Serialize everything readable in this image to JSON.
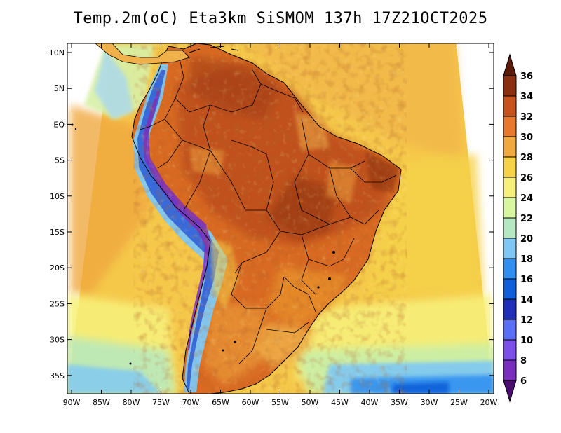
{
  "title": "Temp.2m(oC) Eta3km SiSMOM 137h 17Z21OCT2025",
  "map": {
    "variable": "2 m air temperature",
    "units": "oC",
    "region": "South America",
    "lat_labels": [
      "10N",
      "5N",
      "EQ",
      "5S",
      "10S",
      "15S",
      "20S",
      "25S",
      "30S",
      "35S"
    ],
    "lon_labels": [
      "90W",
      "85W",
      "80W",
      "75W",
      "70W",
      "65W",
      "60W",
      "55W",
      "50W",
      "45W",
      "40W",
      "35W",
      "30W",
      "25W",
      "20W"
    ]
  },
  "colorbar": {
    "labels": [
      "36",
      "34",
      "32",
      "30",
      "28",
      "26",
      "24",
      "22",
      "20",
      "18",
      "16",
      "14",
      "12",
      "10",
      "8",
      "6"
    ],
    "levels": [
      6,
      8,
      10,
      12,
      14,
      16,
      18,
      20,
      22,
      24,
      26,
      28,
      30,
      32,
      34,
      36
    ],
    "colors": [
      "#4a0d6e",
      "#7a2ec0",
      "#7b50e8",
      "#5a6ef5",
      "#1f2fb8",
      "#0f5fd8",
      "#2f8ef0",
      "#7ec8f5",
      "#b5e8c0",
      "#d8f5a0",
      "#f7f07a",
      "#f5d24a",
      "#f0a840",
      "#e8782c",
      "#c8521e",
      "#8a3010",
      "#5a1a08"
    ]
  }
}
